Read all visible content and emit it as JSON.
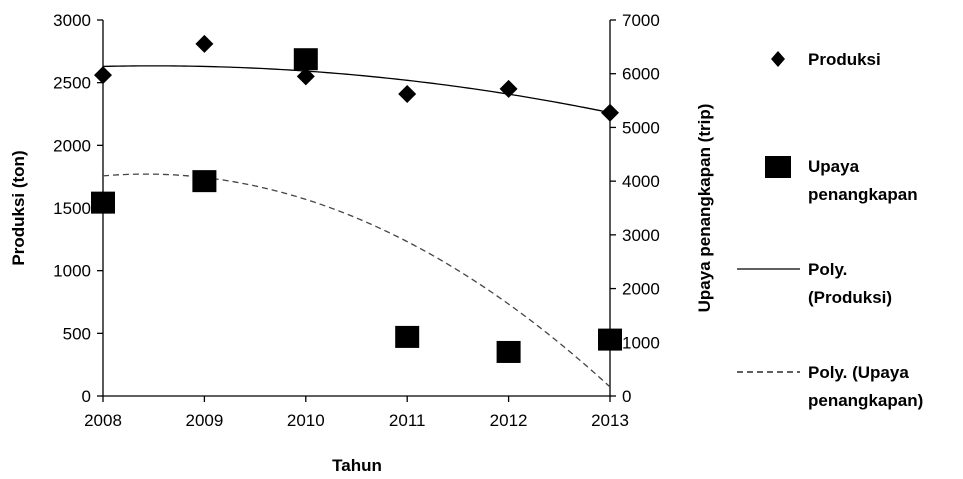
{
  "chart_data": {
    "type": "scatter",
    "x": [
      2008,
      2009,
      2010,
      2011,
      2012,
      2013
    ],
    "xlabel": "Tahun",
    "ylabel_left": "Produksi (ton)",
    "ylabel_right": "Upaya penangkapan (trip)",
    "xlim": [
      2008,
      2013
    ],
    "ylim_left": [
      0,
      3000
    ],
    "ylim_right": [
      0,
      7000
    ],
    "xticks": [
      "2008",
      "2009",
      "2010",
      "2011",
      "2012",
      "2013"
    ],
    "yticks_left": [
      "0",
      "500",
      "1000",
      "1500",
      "2000",
      "2500",
      "3000"
    ],
    "yticks_right": [
      "0",
      "1000",
      "2000",
      "3000",
      "4000",
      "5000",
      "6000",
      "7000"
    ],
    "grid": false,
    "legend_position": "right",
    "series": [
      {
        "name": "Produksi",
        "axis": "left",
        "marker": "diamond",
        "values": [
          2560,
          2810,
          2550,
          2410,
          2450,
          2260
        ]
      },
      {
        "name": "Upaya penangkapan",
        "axis": "right",
        "marker": "square",
        "values": [
          3600,
          4000,
          6270,
          1100,
          820,
          1050
        ]
      }
    ],
    "trendlines": [
      {
        "name": "Poly. (Produksi)",
        "axis": "left",
        "style": "solid",
        "values": [
          2630,
          2630,
          2590,
          2520,
          2410,
          2260
        ]
      },
      {
        "name": "Poly. (Upaya penangkapan)",
        "axis": "right",
        "style": "dashed",
        "values": [
          4080,
          4100,
          3660,
          2860,
          1700,
          180
        ]
      }
    ],
    "legend": [
      {
        "label_lines": [
          "Produksi"
        ],
        "symbol": "diamond"
      },
      {
        "label_lines": [
          "Upaya",
          "penangkapan"
        ],
        "symbol": "square"
      },
      {
        "label_lines": [
          "Poly.",
          "(Produksi)"
        ],
        "symbol": "solid-line"
      },
      {
        "label_lines": [
          "Poly. (Upaya",
          "penangkapan)"
        ],
        "symbol": "dashed-line"
      }
    ]
  }
}
